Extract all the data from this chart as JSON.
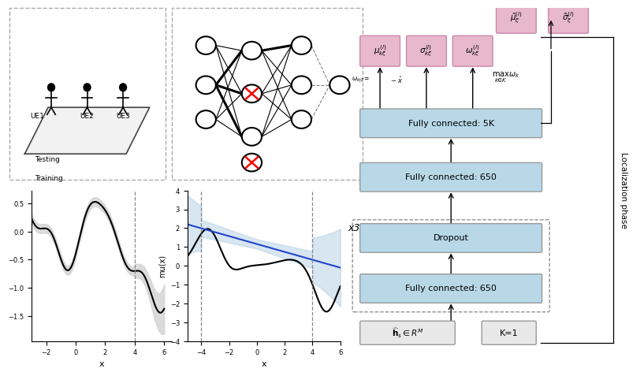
{
  "bg_color": "#ffffff",
  "dnn": {
    "box_blue": "#b8d8e8",
    "box_pink": "#e8b8cc",
    "fc_5k": "Fully connected: 5K",
    "fc_650a": "Fully connected: 650",
    "dropout": "Dropout",
    "fc_650b": "Fully connected: 650",
    "input_box": "$\\widehat{\\mathbf{h}}_s \\in R^M$",
    "k1_box": "K=1",
    "x3": "x3",
    "side": "Localization phase",
    "mu_lbl": "$\\mu_{k\\xi}^{(l)}$",
    "sigma_lbl": "$\\sigma_{k\\xi}^{(l)}$",
    "omega_lbl": "$\\omega_{k\\xi}^{(l)}$",
    "mu_tilde": "$\\tilde{\\mu}_{\\xi}^{(l)}$",
    "sigma_tilde": "$\\tilde{\\sigma}_{\\xi}^{(l)}$",
    "max_lbl": "$\\max_{k\\in K}\\omega_k$"
  },
  "plot1": {
    "xlim": [
      -3,
      6
    ],
    "dashed_x": 4,
    "xlabel": "x",
    "train_label": "Training",
    "test_label": "Testing"
  },
  "plot2": {
    "xlim": [
      -5,
      6
    ],
    "ylim": [
      -4,
      4
    ],
    "dashed_x1": -4,
    "dashed_x2": 4,
    "xlabel": "x",
    "ylabel": "mu(x)"
  }
}
